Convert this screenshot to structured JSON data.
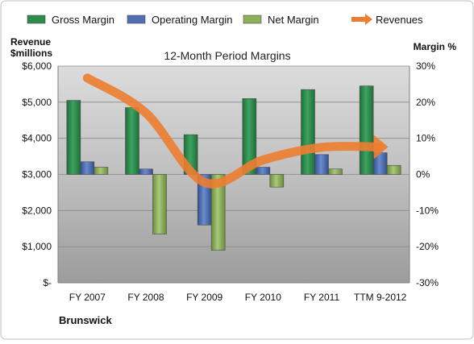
{
  "chart_data": {
    "type": "bar",
    "title": "12-Month Period Margins",
    "company_label": "Brunswick",
    "left_axis_label": [
      "Revenue",
      "$millions"
    ],
    "right_axis_label": "Margin %",
    "categories": [
      "FY 2007",
      "FY 2008",
      "FY 2009",
      "FY 2010",
      "FY 2011",
      "TTM 9-2012"
    ],
    "left_axis": {
      "min": 0,
      "max": 6000,
      "step": 1000,
      "tick_labels": [
        "$-",
        "$1,000",
        "$2,000",
        "$3,000",
        "$4,000",
        "$5,000",
        "$6,000"
      ]
    },
    "right_axis": {
      "min": -30,
      "max": 30,
      "step": 10,
      "tick_labels": [
        "-30%",
        "-20%",
        "-10%",
        "0%",
        "10%",
        "20%",
        "30%"
      ]
    },
    "grid": true,
    "legend_position": "top",
    "series": [
      {
        "name": "Gross Margin",
        "kind": "bar",
        "axis": "right",
        "color": "#2E8B4E",
        "values": [
          20.5,
          18.5,
          11,
          21,
          23.5,
          24.5
        ]
      },
      {
        "name": "Operating Margin",
        "kind": "bar",
        "axis": "right",
        "color": "#4F6FB0",
        "values": [
          3.5,
          1.5,
          -14,
          2,
          5.5,
          6
        ]
      },
      {
        "name": "Net Margin",
        "kind": "bar",
        "axis": "right",
        "color": "#8FAF5C",
        "values": [
          2,
          -16.5,
          -21,
          -3.5,
          1.5,
          2.5
        ]
      },
      {
        "name": "Revenues",
        "kind": "line",
        "axis": "left",
        "color": "#ED7D31",
        "values": [
          5670,
          4700,
          2780,
          3400,
          3750,
          3760
        ]
      }
    ]
  }
}
